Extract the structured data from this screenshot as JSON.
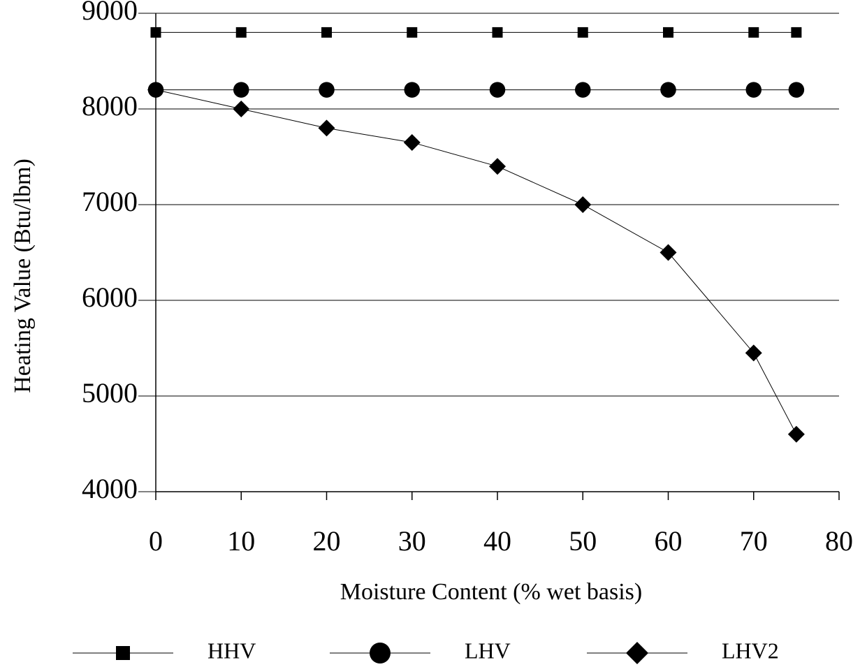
{
  "chart_data": {
    "type": "line",
    "x_label": "Moisture Content (% wet basis)",
    "y_label": "Heating Value (Btu/lbm)",
    "x": [
      0,
      10,
      20,
      30,
      40,
      50,
      60,
      70,
      75
    ],
    "series": [
      {
        "name": "HHV",
        "color": "#000000",
        "marker": "square",
        "values": [
          8800,
          8800,
          8800,
          8800,
          8800,
          8800,
          8800,
          8800,
          8800
        ]
      },
      {
        "name": "LHV",
        "color": "#000000",
        "marker": "circle",
        "values": [
          8200,
          8200,
          8200,
          8200,
          8200,
          8200,
          8200,
          8200,
          8200
        ]
      },
      {
        "name": "LHV2",
        "color": "#000000",
        "marker": "diamond",
        "values": [
          8200,
          8000,
          7800,
          7650,
          7400,
          7000,
          6500,
          5450,
          4600
        ]
      }
    ],
    "xlim": [
      0,
      80
    ],
    "xticks": [
      0,
      10,
      20,
      30,
      40,
      50,
      60,
      70,
      80
    ],
    "ylim": [
      4000,
      9000
    ],
    "yticks": [
      4000,
      5000,
      6000,
      7000,
      8000,
      9000
    ],
    "grid": true,
    "legend": "bottom"
  }
}
